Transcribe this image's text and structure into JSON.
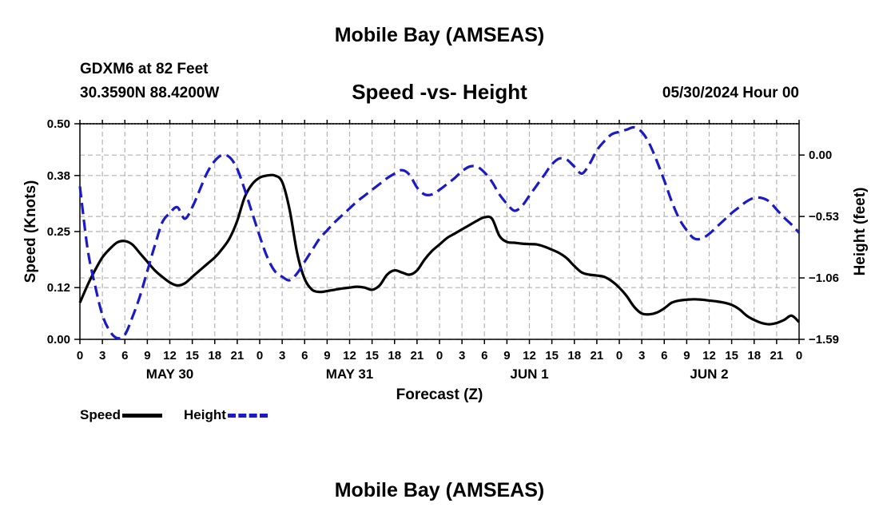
{
  "title": "Mobile Bay (AMSEAS)",
  "station": "GDXM6 at 82 Feet",
  "coordinates": "30.3590N  88.4200W",
  "timestamp": "05/30/2024 Hour 00",
  "bottom_title": "Mobile Bay (AMSEAS)",
  "colors": {
    "speed": "#000000",
    "height": "#1a1ac8",
    "grid": "#b4b4b4"
  },
  "chart_data": {
    "type": "line",
    "title": "Speed -vs- Height",
    "xlabel": "Forecast (Z)",
    "ylabel": "Speed (Knots)",
    "y2label": "Height (feet)",
    "x_unit": "forecast hours",
    "xlim": [
      0,
      96
    ],
    "ylim": [
      0,
      0.5
    ],
    "y2lim": [
      -1.59,
      0.27
    ],
    "x_ticks": [
      0,
      3,
      6,
      9,
      12,
      15,
      18,
      21,
      24,
      27,
      30,
      33,
      36,
      39,
      42,
      45,
      48,
      51,
      54,
      57,
      60,
      63,
      66,
      69,
      72,
      75,
      78,
      81,
      84,
      87,
      90,
      93,
      96
    ],
    "x_tick_labels": [
      "0",
      "3",
      "6",
      "9",
      "12",
      "15",
      "18",
      "21",
      "0",
      "3",
      "6",
      "9",
      "12",
      "15",
      "18",
      "21",
      "0",
      "3",
      "6",
      "9",
      "12",
      "15",
      "18",
      "21",
      "0",
      "3",
      "6",
      "9",
      "12",
      "15",
      "18",
      "21",
      "0"
    ],
    "day_labels": [
      {
        "x": 12,
        "label": "MAY 30"
      },
      {
        "x": 36,
        "label": "MAY 31"
      },
      {
        "x": 60,
        "label": "JUN 1"
      },
      {
        "x": 84,
        "label": "JUN 2"
      }
    ],
    "y_ticks": [
      0.0,
      0.12,
      0.25,
      0.38,
      0.5
    ],
    "y_tick_labels": [
      "0.00",
      "0.12",
      "0.25",
      "0.38",
      "0.50"
    ],
    "y2_ticks": [
      0.0,
      -0.53,
      -1.06,
      -1.59
    ],
    "y2_tick_labels": [
      "0.00",
      "−0.53",
      "−1.06",
      "−1.59"
    ],
    "series": [
      {
        "name": "Speed",
        "axis": "left",
        "style": "solid",
        "x": [
          0,
          1,
          2,
          3,
          4,
          5,
          6,
          7,
          8,
          9,
          10,
          11,
          12,
          13,
          14,
          15,
          16,
          17,
          18,
          19,
          20,
          21,
          22,
          23,
          24,
          25,
          26,
          27,
          28,
          29,
          30,
          31,
          32,
          33,
          34,
          35,
          36,
          37,
          38,
          39,
          40,
          41,
          42,
          43,
          44,
          45,
          46,
          47,
          48,
          49,
          50,
          51,
          52,
          53,
          54,
          55,
          56,
          57,
          58,
          59,
          60,
          61,
          62,
          63,
          64,
          65,
          66,
          67,
          68,
          69,
          70,
          71,
          72,
          73,
          74,
          75,
          76,
          77,
          78,
          79,
          80,
          81,
          82,
          83,
          84,
          85,
          86,
          87,
          88,
          89,
          90,
          91,
          92,
          93,
          94,
          95,
          96
        ],
        "values": [
          0.085,
          0.125,
          0.16,
          0.19,
          0.21,
          0.225,
          0.228,
          0.22,
          0.2,
          0.18,
          0.16,
          0.145,
          0.132,
          0.125,
          0.13,
          0.145,
          0.16,
          0.175,
          0.19,
          0.21,
          0.235,
          0.275,
          0.33,
          0.36,
          0.375,
          0.38,
          0.38,
          0.365,
          0.3,
          0.2,
          0.14,
          0.115,
          0.11,
          0.112,
          0.115,
          0.118,
          0.12,
          0.122,
          0.12,
          0.115,
          0.125,
          0.15,
          0.16,
          0.155,
          0.15,
          0.16,
          0.185,
          0.205,
          0.22,
          0.235,
          0.245,
          0.255,
          0.265,
          0.275,
          0.283,
          0.28,
          0.24,
          0.226,
          0.224,
          0.222,
          0.221,
          0.22,
          0.215,
          0.208,
          0.2,
          0.188,
          0.17,
          0.155,
          0.15,
          0.148,
          0.145,
          0.135,
          0.12,
          0.1,
          0.075,
          0.06,
          0.058,
          0.062,
          0.072,
          0.085,
          0.09,
          0.092,
          0.093,
          0.092,
          0.09,
          0.088,
          0.085,
          0.08,
          0.07,
          0.055,
          0.045,
          0.038,
          0.035,
          0.038,
          0.045,
          0.055,
          0.04
        ]
      },
      {
        "name": "Height",
        "axis": "right",
        "style": "dashed",
        "x": [
          0,
          1,
          2,
          3,
          4,
          5,
          6,
          7,
          8,
          9,
          10,
          11,
          12,
          13,
          14,
          15,
          16,
          17,
          18,
          19,
          20,
          21,
          22,
          23,
          24,
          25,
          26,
          27,
          28,
          29,
          30,
          31,
          32,
          33,
          34,
          35,
          36,
          37,
          38,
          39,
          40,
          41,
          42,
          43,
          44,
          45,
          46,
          47,
          48,
          49,
          50,
          51,
          52,
          53,
          54,
          55,
          56,
          57,
          58,
          59,
          60,
          61,
          62,
          63,
          64,
          65,
          66,
          67,
          68,
          69,
          70,
          71,
          72,
          73,
          74,
          75,
          76,
          77,
          78,
          79,
          80,
          81,
          82,
          83,
          84,
          85,
          86,
          87,
          88,
          89,
          90,
          91,
          92,
          93,
          94,
          95,
          96
        ],
        "values": [
          -0.27,
          -0.8,
          -1.12,
          -1.38,
          -1.52,
          -1.58,
          -1.55,
          -1.4,
          -1.22,
          -1.0,
          -0.78,
          -0.58,
          -0.5,
          -0.45,
          -0.55,
          -0.45,
          -0.3,
          -0.15,
          -0.05,
          0.0,
          -0.02,
          -0.12,
          -0.3,
          -0.5,
          -0.7,
          -0.88,
          -1.0,
          -1.05,
          -1.08,
          -1.02,
          -0.92,
          -0.82,
          -0.72,
          -0.65,
          -0.58,
          -0.52,
          -0.46,
          -0.4,
          -0.35,
          -0.3,
          -0.25,
          -0.2,
          -0.16,
          -0.13,
          -0.17,
          -0.28,
          -0.34,
          -0.34,
          -0.3,
          -0.25,
          -0.2,
          -0.14,
          -0.1,
          -0.1,
          -0.15,
          -0.23,
          -0.34,
          -0.42,
          -0.48,
          -0.44,
          -0.35,
          -0.26,
          -0.17,
          -0.08,
          -0.03,
          -0.04,
          -0.1,
          -0.16,
          -0.08,
          0.04,
          0.12,
          0.18,
          0.2,
          0.22,
          0.24,
          0.2,
          0.1,
          -0.05,
          -0.22,
          -0.4,
          -0.55,
          -0.65,
          -0.72,
          -0.72,
          -0.68,
          -0.62,
          -0.56,
          -0.5,
          -0.45,
          -0.4,
          -0.37,
          -0.37,
          -0.4,
          -0.47,
          -0.54,
          -0.6,
          -0.67
        ]
      }
    ],
    "legend": {
      "position": "bottom-left",
      "entries": [
        "Speed",
        "Height"
      ]
    }
  }
}
